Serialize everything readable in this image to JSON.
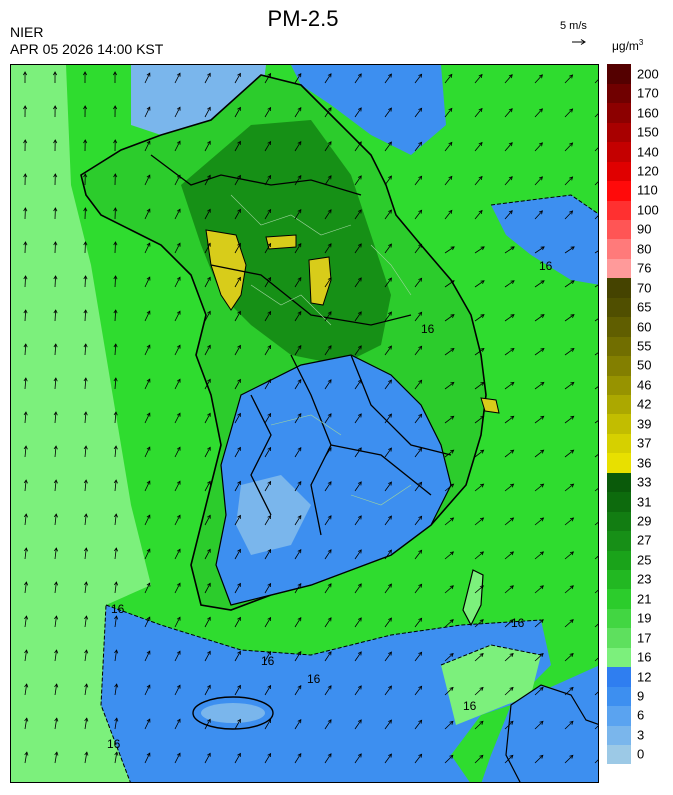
{
  "header": {
    "title": "PM-2.5",
    "agency": "NIER",
    "timestamp": "APR 05 2026 14:00 KST",
    "wind_scale_label": "5 m/s",
    "unit_main": "μg/m",
    "unit_sup": "3"
  },
  "colorbar": {
    "labels": [
      "0",
      "3",
      "6",
      "9",
      "12",
      "16",
      "17",
      "19",
      "21",
      "23",
      "25",
      "27",
      "29",
      "31",
      "33",
      "36",
      "37",
      "39",
      "42",
      "46",
      "50",
      "55",
      "60",
      "65",
      "70",
      "76",
      "80",
      "90",
      "100",
      "110",
      "120",
      "140",
      "150",
      "160",
      "170",
      "200"
    ],
    "colors": [
      "#9cc9e6",
      "#7ab6ec",
      "#5aa3f0",
      "#3d8ff0",
      "#2f7ef0",
      "#7cf07c",
      "#5ee05e",
      "#42d642",
      "#2ccc2c",
      "#22b822",
      "#1aa31a",
      "#178f17",
      "#127d12",
      "#0d6b0d",
      "#0a5a0a",
      "#e8e000",
      "#d6d000",
      "#c2bd00",
      "#aca800",
      "#979300",
      "#837f00",
      "#716e00",
      "#605e00",
      "#504f00",
      "#454300",
      "#ff9a9a",
      "#ff7a7a",
      "#ff5555",
      "#ff3030",
      "#ff0a0a",
      "#e00000",
      "#c40000",
      "#a80000",
      "#8c0000",
      "#700000",
      "#540000"
    ]
  },
  "map": {
    "contour_labels": [
      "16",
      "16",
      "16",
      "16",
      "16",
      "16",
      "16",
      "16"
    ],
    "palette": {
      "sea_green": "#2fdc2f",
      "land_dark": "#169016",
      "land_mid": "#21b421",
      "blue": "#3d8ff0",
      "light_green": "#7cf07c",
      "yellow": "#d8cc1a",
      "border": "#000000",
      "light_blue": "#9cc9e6"
    }
  }
}
